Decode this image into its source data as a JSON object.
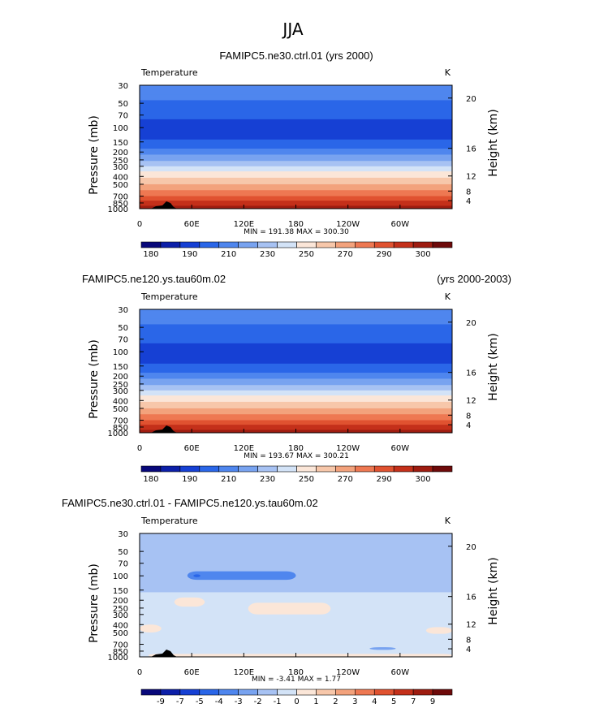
{
  "figure": {
    "suptitle": "JJA"
  },
  "colors": {
    "abs": [
      "#08087a",
      "#0c1fa8",
      "#1640d4",
      "#2a66e8",
      "#4f86ee",
      "#78a3f0",
      "#a7c2f3",
      "#d3e3f7",
      "#fbe6d8",
      "#f7c7aa",
      "#f3a27c",
      "#ee7852",
      "#e05230",
      "#c4301a",
      "#9e1c10",
      "#6e0a0a"
    ],
    "diff": [
      "#08087a",
      "#0c1fa8",
      "#1640d4",
      "#2a66e8",
      "#4f86ee",
      "#78a3f0",
      "#a7c2f3",
      "#d3e3f7",
      "#fbe6d8",
      "#f7c7aa",
      "#f3a27c",
      "#ee7852",
      "#e05230",
      "#c4301a",
      "#9e1c10",
      "#6e0a0a"
    ],
    "terrain": "#000000"
  },
  "chart_data": [
    {
      "type": "heatmap",
      "title_left": "FAMIPC5.ne30.ctrl.01 (yrs 2000)",
      "title_right": "",
      "variable": "Temperature",
      "units": "K",
      "ylabel": "Pressure  (mb)",
      "ylabel_right": "Height  (km)",
      "x_ticks": [
        "0",
        "60E",
        "120E",
        "180",
        "120W",
        "60W"
      ],
      "y_ticks": [
        "30",
        "50",
        "70",
        "100",
        "150",
        "200",
        "250",
        "300",
        "400",
        "500",
        "700",
        "850",
        "1000"
      ],
      "y_right_ticks": [
        "20",
        "16",
        "12",
        "8",
        "4"
      ],
      "stats": "MIN =  191.38   MAX =  300.30",
      "colorbar": {
        "levels": [
          180,
          185,
          190,
          195,
          200,
          205,
          210,
          215,
          220,
          225,
          230,
          235,
          240,
          245,
          250,
          255,
          260,
          265,
          270,
          275,
          280,
          285,
          290,
          295,
          300
        ],
        "labels": [
          "180",
          "190",
          "210",
          "230",
          "250",
          "270",
          "290",
          "300"
        ]
      },
      "profile": [
        {
          "p": 30,
          "t": 215
        },
        {
          "p": 50,
          "t": 211
        },
        {
          "p": 70,
          "t": 206
        },
        {
          "p": 100,
          "t": 200
        },
        {
          "p": 150,
          "t": 205
        },
        {
          "p": 200,
          "t": 216
        },
        {
          "p": 250,
          "t": 226
        },
        {
          "p": 300,
          "t": 236
        },
        {
          "p": 400,
          "t": 250
        },
        {
          "p": 500,
          "t": 260
        },
        {
          "p": 700,
          "t": 277
        },
        {
          "p": 850,
          "t": 288
        },
        {
          "p": 1000,
          "t": 297
        }
      ]
    },
    {
      "type": "heatmap",
      "title_left": "FAMIPC5.ne120.ys.tau60m.02",
      "title_right": "(yrs 2000-2003)",
      "variable": "Temperature",
      "units": "K",
      "ylabel": "Pressure  (mb)",
      "ylabel_right": "Height  (km)",
      "x_ticks": [
        "0",
        "60E",
        "120E",
        "180",
        "120W",
        "60W"
      ],
      "y_ticks": [
        "30",
        "50",
        "70",
        "100",
        "150",
        "200",
        "250",
        "300",
        "400",
        "500",
        "700",
        "850",
        "1000"
      ],
      "y_right_ticks": [
        "20",
        "16",
        "12",
        "8",
        "4"
      ],
      "stats": "MIN =  193.67   MAX =  300.21",
      "colorbar": {
        "levels": [
          180,
          185,
          190,
          195,
          200,
          205,
          210,
          215,
          220,
          225,
          230,
          235,
          240,
          245,
          250,
          255,
          260,
          265,
          270,
          275,
          280,
          285,
          290,
          295,
          300
        ],
        "labels": [
          "180",
          "190",
          "210",
          "230",
          "250",
          "270",
          "290",
          "300"
        ]
      },
      "profile": [
        {
          "p": 30,
          "t": 215
        },
        {
          "p": 50,
          "t": 211
        },
        {
          "p": 70,
          "t": 206
        },
        {
          "p": 100,
          "t": 200
        },
        {
          "p": 150,
          "t": 205
        },
        {
          "p": 200,
          "t": 216
        },
        {
          "p": 250,
          "t": 226
        },
        {
          "p": 300,
          "t": 236
        },
        {
          "p": 400,
          "t": 250
        },
        {
          "p": 500,
          "t": 260
        },
        {
          "p": 700,
          "t": 277
        },
        {
          "p": 850,
          "t": 288
        },
        {
          "p": 1000,
          "t": 297
        }
      ]
    },
    {
      "type": "heatmap",
      "title_left": "FAMIPC5.ne30.ctrl.01 - FAMIPC5.ne120.ys.tau60m.02",
      "title_right": "",
      "variable": "Temperature",
      "units": "K",
      "ylabel": "Pressure  (mb)",
      "ylabel_right": "Height  (km)",
      "x_ticks": [
        "0",
        "60E",
        "120E",
        "180",
        "120W",
        "60W"
      ],
      "y_ticks": [
        "30",
        "50",
        "70",
        "100",
        "150",
        "200",
        "250",
        "300",
        "400",
        "500",
        "700",
        "850",
        "1000"
      ],
      "y_right_ticks": [
        "20",
        "16",
        "12",
        "8",
        "4"
      ],
      "stats": "MIN =   -3.41   MAX =    1.77",
      "colorbar": {
        "levels": [
          -9,
          -7,
          -5,
          -4,
          -3,
          -2,
          -1,
          0,
          1,
          2,
          3,
          4,
          5,
          7,
          9
        ],
        "labels": [
          "-9",
          "-7",
          "-5",
          "-4",
          "-3",
          "-2",
          "-1",
          "0",
          "1",
          "2",
          "3",
          "4",
          "5",
          "7",
          "9"
        ]
      },
      "regions": [
        {
          "class": -2,
          "p_top": 30,
          "p_bottom": 160,
          "lon_from": 0,
          "lon_to": 360
        },
        {
          "class": 0,
          "p_top": 160,
          "p_bottom": 1000,
          "lon_from": 0,
          "lon_to": 360
        },
        {
          "class": -3,
          "p_top": 88,
          "p_bottom": 112,
          "lon_from": 55,
          "lon_to": 180
        },
        {
          "class": -4,
          "p_top": 96,
          "p_bottom": 104,
          "lon_from": 62,
          "lon_to": 70
        },
        {
          "class": 1,
          "p_top": 185,
          "p_bottom": 240,
          "lon_from": 40,
          "lon_to": 75
        },
        {
          "class": 1,
          "p_top": 215,
          "p_bottom": 300,
          "lon_from": 125,
          "lon_to": 220
        },
        {
          "class": 1,
          "p_top": 400,
          "p_bottom": 500,
          "lon_from": 0,
          "lon_to": 25
        },
        {
          "class": 1,
          "p_top": 430,
          "p_bottom": 520,
          "lon_from": 330,
          "lon_to": 360
        },
        {
          "class": -1,
          "p_top": 760,
          "p_bottom": 820,
          "lon_from": 265,
          "lon_to": 295
        },
        {
          "class": 1,
          "p_top": 920,
          "p_bottom": 1000,
          "lon_from": 10,
          "lon_to": 360
        }
      ]
    }
  ]
}
